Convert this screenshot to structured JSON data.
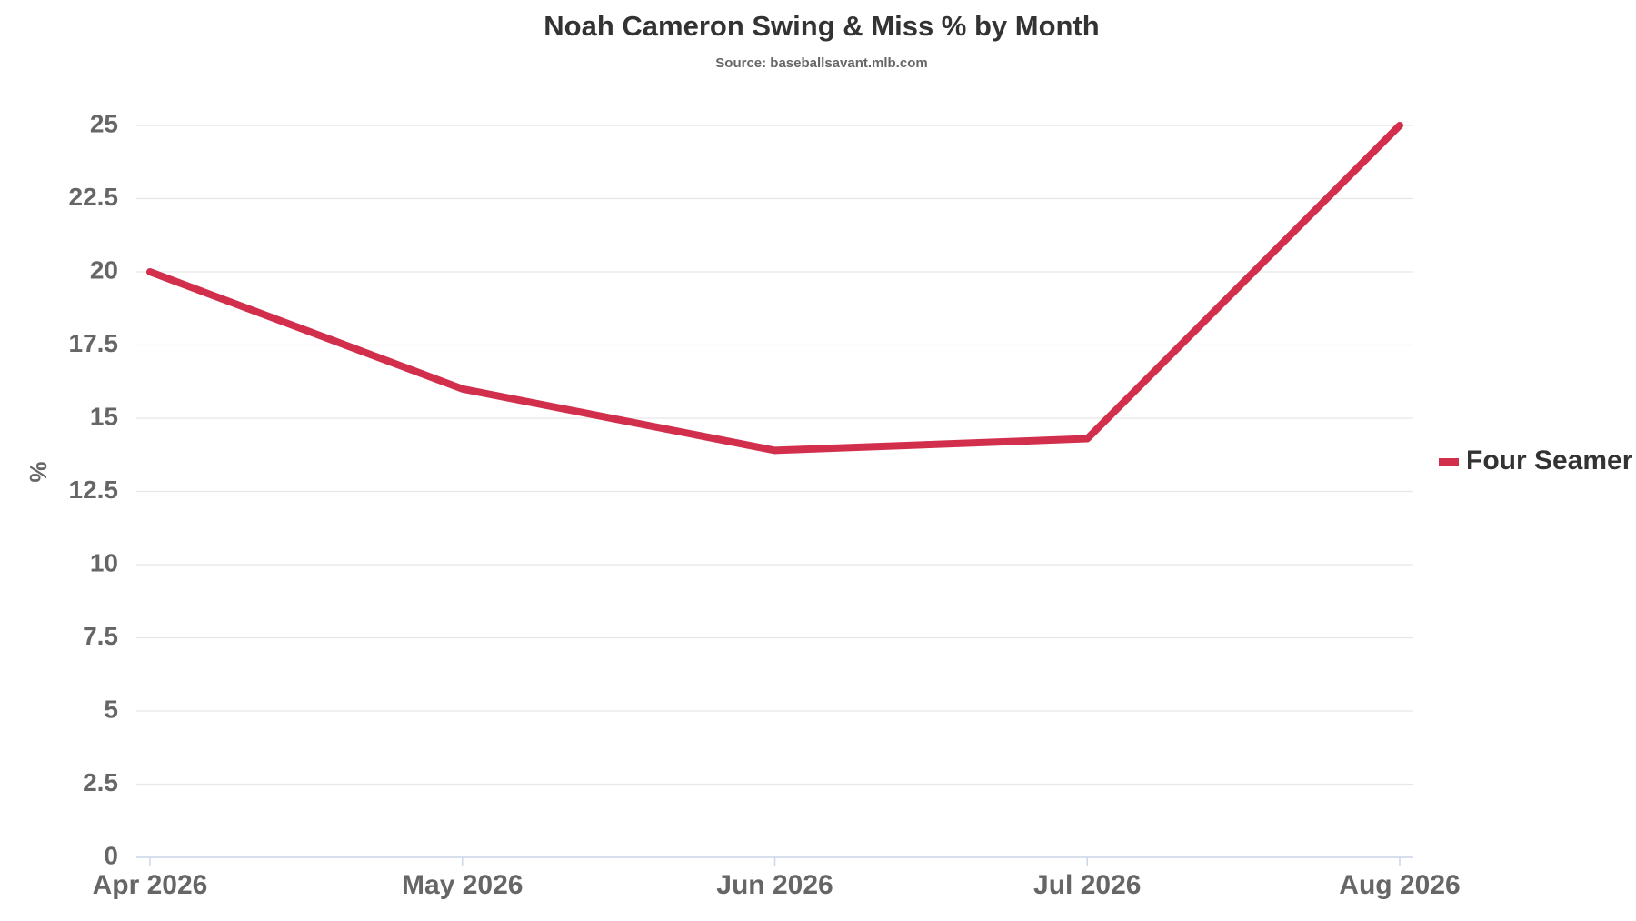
{
  "chart_data": {
    "type": "line",
    "title": "Noah Cameron Swing & Miss % by Month",
    "subtitle": "Source: baseballsavant.mlb.com",
    "y_label": "%",
    "categories": [
      "Apr 2026",
      "May 2026",
      "Jun 2026",
      "Jul 2026",
      "Aug 2026"
    ],
    "series": [
      {
        "name": "Four Seamer",
        "color": "#d12f4c",
        "values": [
          20,
          16,
          13.9,
          14.3,
          25
        ]
      }
    ],
    "ylim": [
      0,
      25
    ],
    "yticks": [
      0,
      2.5,
      5,
      7.5,
      10,
      12.5,
      15,
      17.5,
      20,
      22.5,
      25
    ],
    "grid": true,
    "legend": "right"
  }
}
